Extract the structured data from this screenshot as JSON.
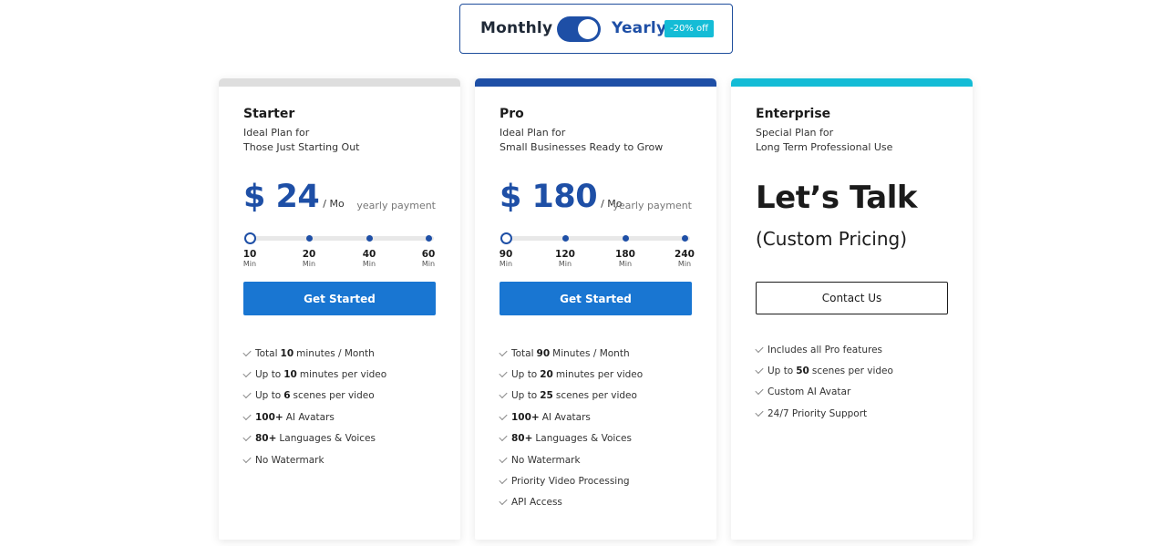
{
  "billing": {
    "monthly_label": "Monthly",
    "yearly_label": "Yearly",
    "discount_badge": "-20% off",
    "selected": "yearly"
  },
  "plans": [
    {
      "name": "Starter",
      "desc_line1": "Ideal Plan for",
      "desc_line2": "Those Just Starting Out",
      "price": "$ 24",
      "per": "/ Mo",
      "payment_note": "yearly payment",
      "slider": {
        "selected_index": 0,
        "ticks": [
          {
            "num": "10",
            "unit": "Min"
          },
          {
            "num": "20",
            "unit": "Min"
          },
          {
            "num": "40",
            "unit": "Min"
          },
          {
            "num": "60",
            "unit": "Min"
          }
        ]
      },
      "cta": "Get Started",
      "features": [
        {
          "pre": "Total",
          "bold": "10",
          "text": "minutes / Month"
        },
        {
          "pre": "Up to",
          "bold": "10",
          "text": "minutes per video"
        },
        {
          "pre": "Up to",
          "bold": "6",
          "text": "scenes per video"
        },
        {
          "pre": "",
          "bold": "100+",
          "text": "AI Avatars"
        },
        {
          "pre": "",
          "bold": "80+",
          "text": "Languages & Voices"
        },
        {
          "pre": "",
          "bold": "",
          "text": "No Watermark"
        }
      ]
    },
    {
      "name": "Pro",
      "desc_line1": "Ideal Plan for",
      "desc_line2": "Small Businesses Ready to Grow",
      "price": "$ 180",
      "per": "/ Mo",
      "payment_note": "yearly payment",
      "slider": {
        "selected_index": 0,
        "ticks": [
          {
            "num": "90",
            "unit": "Min"
          },
          {
            "num": "120",
            "unit": "Min"
          },
          {
            "num": "180",
            "unit": "Min"
          },
          {
            "num": "240",
            "unit": "Min"
          }
        ]
      },
      "cta": "Get Started",
      "features": [
        {
          "pre": "Total",
          "bold": "90",
          "text": "Minutes / Month"
        },
        {
          "pre": "Up to",
          "bold": "20",
          "text": "minutes per video"
        },
        {
          "pre": "Up to",
          "bold": "25",
          "text": "scenes per video"
        },
        {
          "pre": "",
          "bold": "100+",
          "text": "AI Avatars"
        },
        {
          "pre": "",
          "bold": "80+",
          "text": "Languages & Voices"
        },
        {
          "pre": "",
          "bold": "",
          "text": "No Watermark"
        },
        {
          "pre": "",
          "bold": "",
          "text": "Priority Video Processing"
        },
        {
          "pre": "",
          "bold": "",
          "text": "API Access"
        }
      ]
    },
    {
      "name": "Enterprise",
      "desc_line1": "Special Plan for",
      "desc_line2": "Long Term Professional Use",
      "headline": "Let’s Talk",
      "subheadline": "(Custom Pricing)",
      "cta": "Contact Us",
      "features": [
        {
          "pre": "",
          "bold": "",
          "text": "Includes all Pro features"
        },
        {
          "pre": "Up to",
          "bold": "50",
          "text": "scenes per video"
        },
        {
          "pre": "",
          "bold": "",
          "text": "Custom AI Avatar"
        },
        {
          "pre": "",
          "bold": "",
          "text": "24/7 Priority Support"
        }
      ]
    }
  ],
  "colors": {
    "primary": "#1e4fa6",
    "button": "#1976d2",
    "accent": "#14bcd6",
    "starter_bar": "#dedede"
  }
}
